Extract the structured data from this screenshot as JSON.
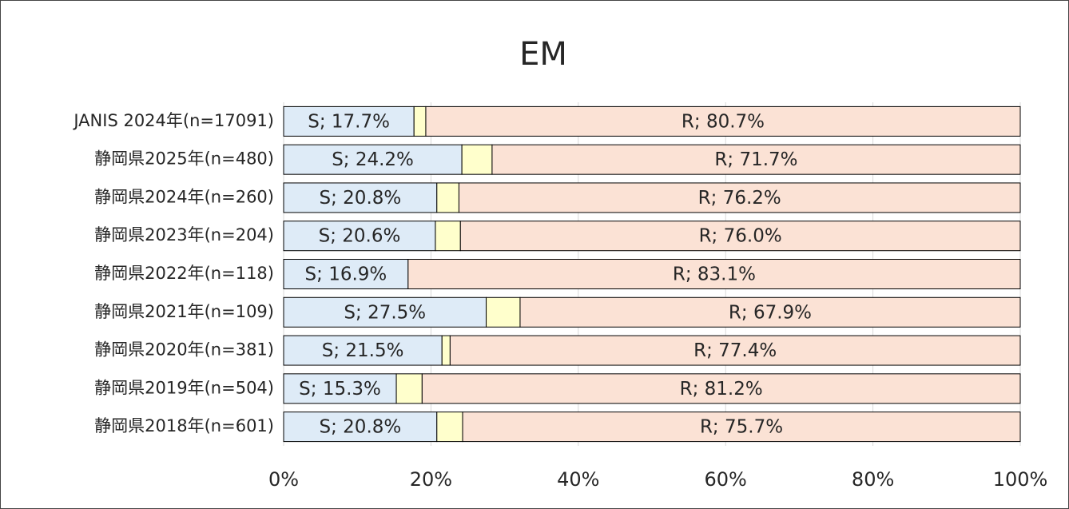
{
  "chart_data": {
    "type": "stacked_bar_horizontal",
    "title": "EM",
    "categories": [
      "JANIS 2024年(n=17091)",
      "静岡県2025年(n=480)",
      "静岡県2024年(n=260)",
      "静岡県2023年(n=204)",
      "静岡県2022年(n=118)",
      "静岡県2021年(n=109)",
      "静岡県2020年(n=381)",
      "静岡県2019年(n=504)",
      "静岡県2018年(n=601)"
    ],
    "series": [
      {
        "color": "#deebf7",
        "values": [
          17.7,
          24.2,
          20.8,
          20.6,
          16.9,
          27.5,
          21.5,
          15.3,
          20.8
        ],
        "value_labels": [
          "S; 17.7%",
          "S; 24.2%",
          "S; 20.8%",
          "S; 20.6%",
          "S; 16.9%",
          "S; 27.5%",
          "S; 21.5%",
          "S; 15.3%",
          "S; 20.8%"
        ]
      },
      {
        "color": "#ffffcc",
        "values": [
          1.6,
          4.1,
          3.0,
          3.4,
          0,
          4.6,
          1.1,
          3.5,
          3.5
        ]
      },
      {
        "color": "#fbe2d5",
        "values": [
          80.7,
          71.7,
          76.2,
          76.0,
          83.1,
          67.9,
          77.4,
          81.2,
          75.7
        ],
        "value_labels": [
          "R; 80.7%",
          "R; 71.7%",
          "R; 76.2%",
          "R; 76.0%",
          "R; 83.1%",
          "R; 67.9%",
          "R; 77.4%",
          "R; 81.2%",
          "R; 75.7%"
        ]
      }
    ],
    "xlim": [
      0,
      100
    ],
    "xticks": [
      {
        "value": 0,
        "label": "0%"
      },
      {
        "value": 20,
        "label": "20%"
      },
      {
        "value": 40,
        "label": "40%"
      },
      {
        "value": 60,
        "label": "60%"
      },
      {
        "value": 80,
        "label": "80%"
      },
      {
        "value": 100,
        "label": "100%"
      }
    ],
    "grid": true
  }
}
